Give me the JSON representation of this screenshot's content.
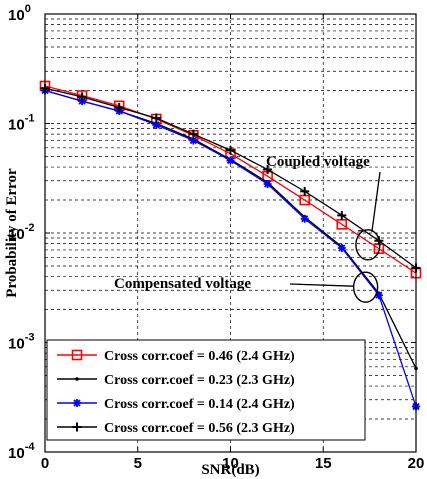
{
  "chart_data": {
    "type": "line",
    "xlabel": "SNR(dB)",
    "ylabel": "Probability of Error",
    "xlim": [
      0,
      20
    ],
    "ylim": [
      0.0001,
      1
    ],
    "yscale": "log",
    "x_ticks": [
      0,
      5,
      10,
      15,
      20
    ],
    "y_tick_labels": [
      {
        "value": 1,
        "base": "10",
        "exp": "0"
      },
      {
        "value": 0.1,
        "base": "10",
        "exp": "-1"
      },
      {
        "value": 0.01,
        "base": "10",
        "exp": "-2"
      },
      {
        "value": 0.001,
        "base": "10",
        "exp": "-3"
      },
      {
        "value": 0.0001,
        "base": "10",
        "exp": "-4"
      }
    ],
    "grid": true,
    "legend_position": "bottom-left",
    "series": [
      {
        "name": "Cross corr.coef = 0.46 (2.4 GHz)",
        "color": "#ff0000",
        "marker": "square",
        "x": [
          0,
          2,
          4,
          6,
          8,
          10,
          12,
          14,
          16,
          18,
          20
        ],
        "y": [
          0.22,
          0.18,
          0.145,
          0.11,
          0.078,
          0.053,
          0.033,
          0.02,
          0.012,
          0.0072,
          0.0043
        ]
      },
      {
        "name": "Cross corr.coef = 0.23 (2.3 GHz)",
        "color": "#000000",
        "marker": "point",
        "x": [
          0,
          2,
          4,
          6,
          8,
          10,
          12,
          14,
          16,
          18,
          20
        ],
        "y": [
          0.2,
          0.16,
          0.13,
          0.1,
          0.072,
          0.047,
          0.029,
          0.014,
          0.0075,
          0.0028,
          0.00058
        ]
      },
      {
        "name": "Cross corr.coef = 0.14 (2.4 GHz)",
        "color": "#0000ff",
        "marker": "star",
        "x": [
          0,
          2,
          4,
          6,
          8,
          10,
          12,
          14,
          16,
          18,
          20
        ],
        "y": [
          0.2,
          0.16,
          0.13,
          0.097,
          0.07,
          0.046,
          0.028,
          0.0135,
          0.0073,
          0.0027,
          0.00026
        ]
      },
      {
        "name": "Cross corr.coef = 0.56 (2.3 GHz)",
        "color": "#000000",
        "marker": "plus",
        "x": [
          0,
          2,
          4,
          6,
          8,
          10,
          12,
          14,
          16,
          18,
          20
        ],
        "y": [
          0.21,
          0.175,
          0.14,
          0.112,
          0.08,
          0.057,
          0.038,
          0.024,
          0.0145,
          0.0085,
          0.0048
        ]
      }
    ],
    "annotations": [
      {
        "text": "Coupled  voltage",
        "points_to": {
          "x": 18,
          "y": 0.0078
        }
      },
      {
        "text": "Compensated voltage",
        "points_to": {
          "x": 17.5,
          "y": 0.0032
        }
      }
    ]
  }
}
